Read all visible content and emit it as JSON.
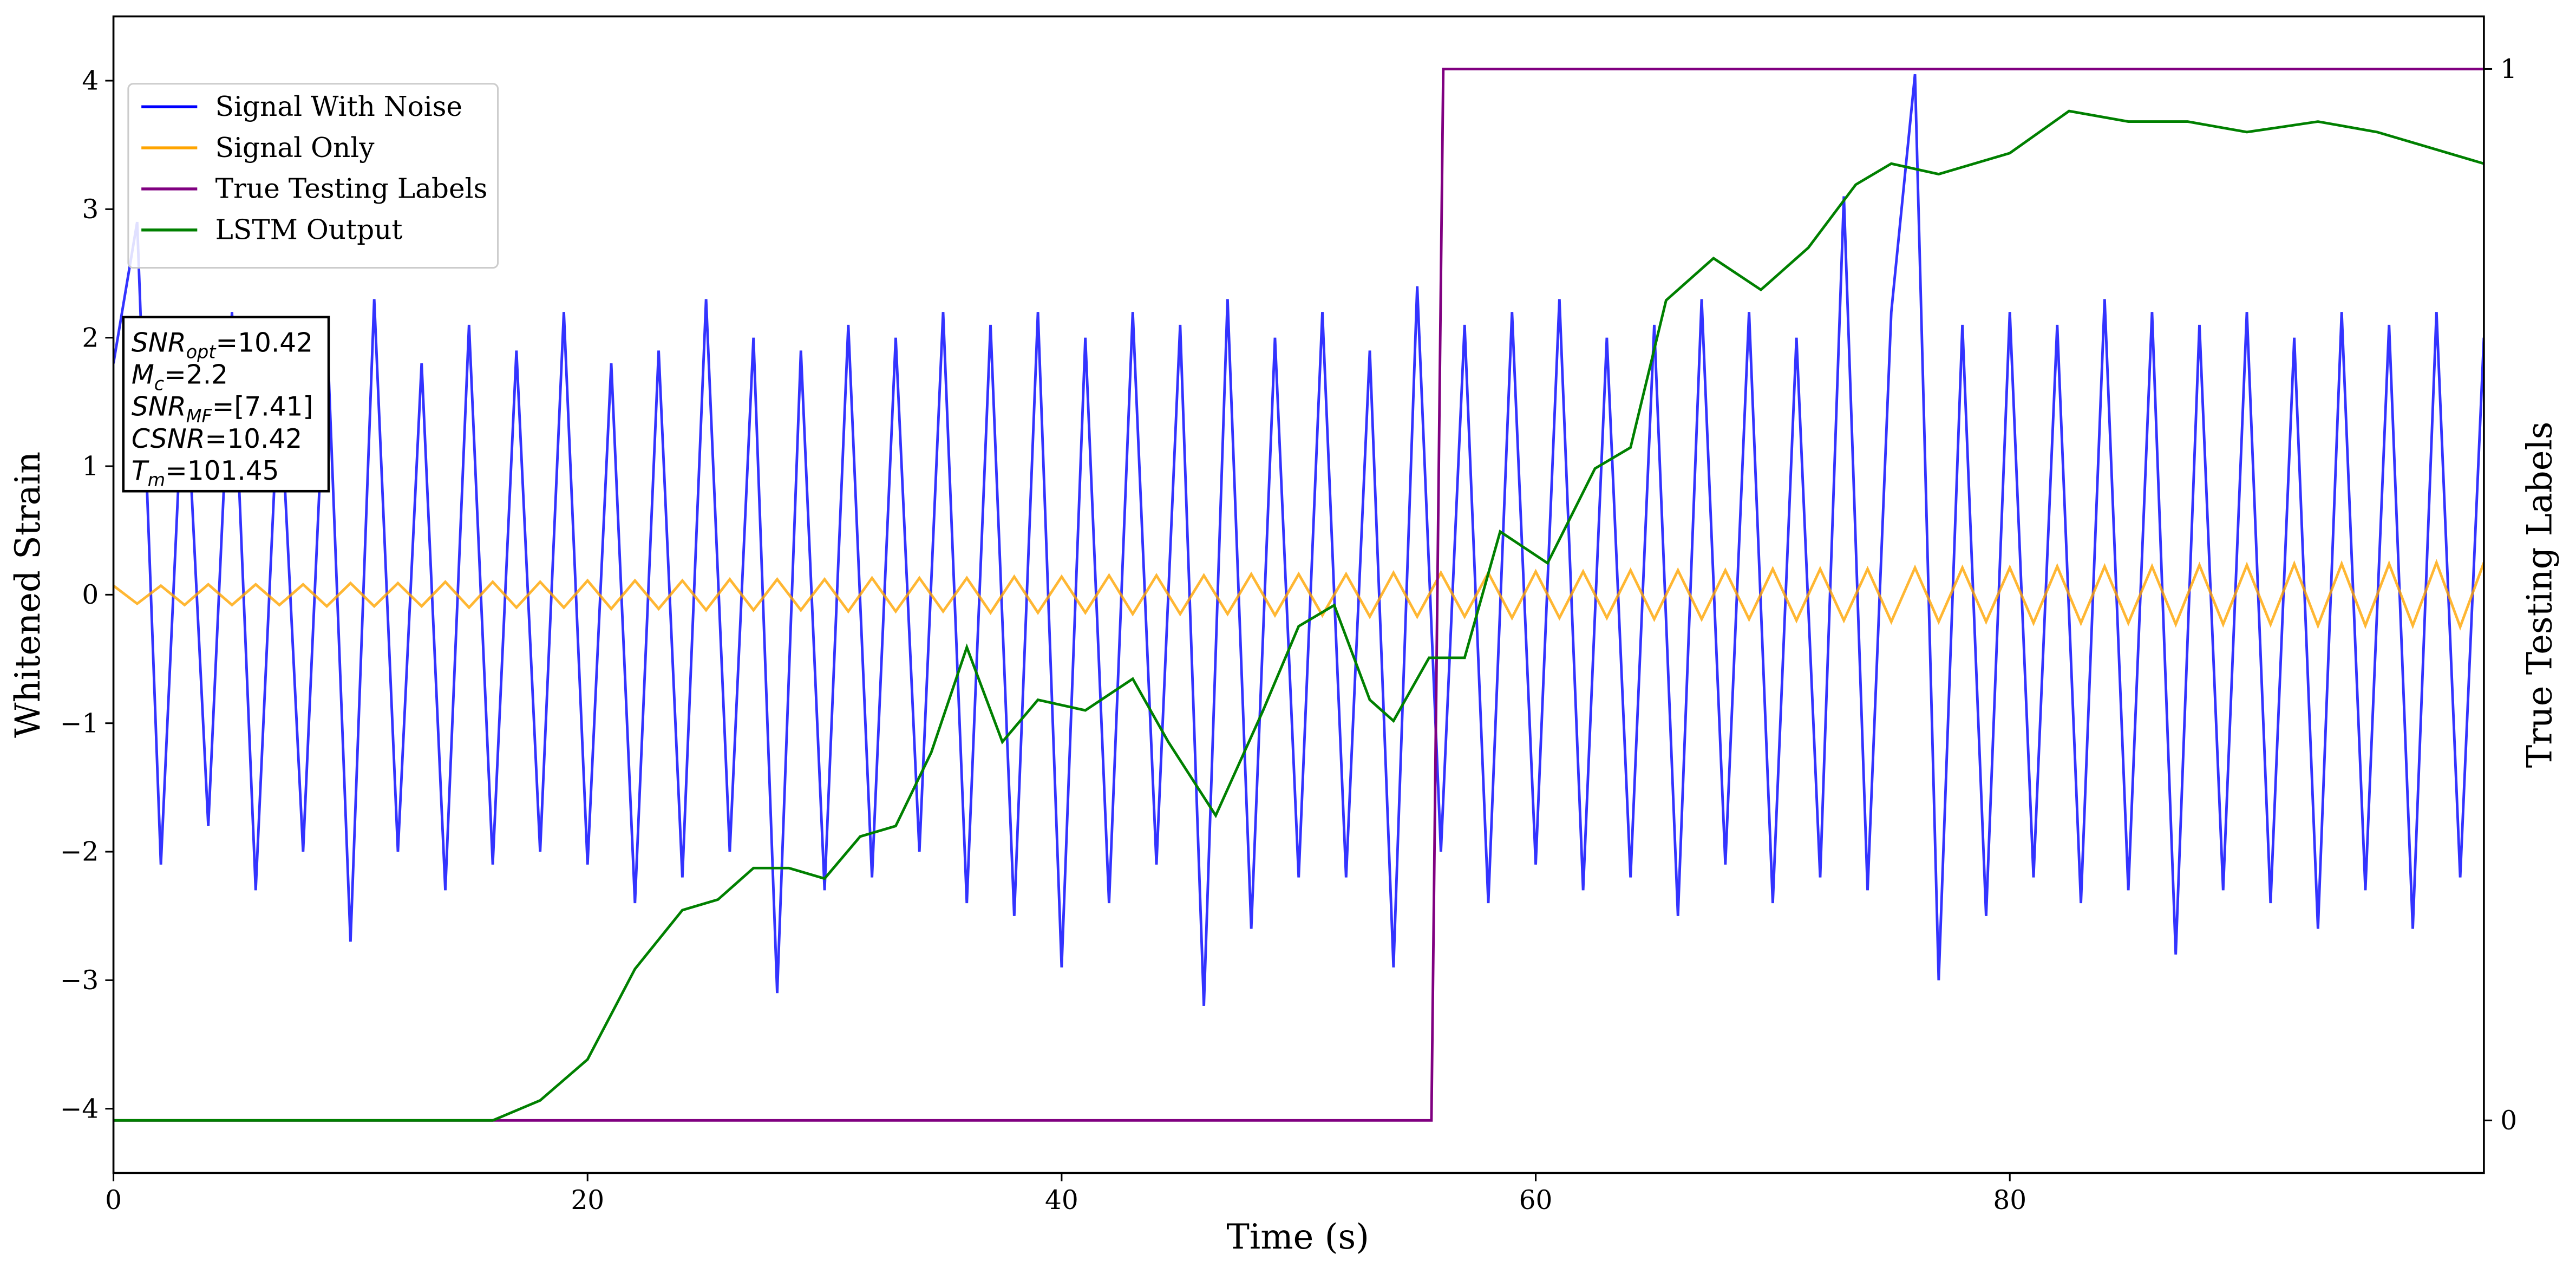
{
  "chart_data": {
    "type": "line",
    "xlabel": "Time (s)",
    "ylabel": "Whitened Strain",
    "y2label": "True Testing Labels",
    "xlim": [
      0,
      100
    ],
    "ylim": [
      -4.5,
      4.5
    ],
    "y2lim": [
      -0.05,
      1.05
    ],
    "xticks": [
      0,
      20,
      40,
      60,
      80
    ],
    "yticks": [
      {
        "value": -4,
        "label": "−4"
      },
      {
        "value": -3,
        "label": "−3"
      },
      {
        "value": -2,
        "label": "−2"
      },
      {
        "value": -1,
        "label": "−1"
      },
      0,
      1,
      2,
      3,
      4
    ],
    "y2ticks": [
      0,
      1
    ],
    "legend": "upper left",
    "x": [
      0,
      1,
      2,
      3,
      4,
      5,
      6,
      7,
      8,
      9,
      10,
      11,
      12,
      13,
      14,
      15,
      16,
      17,
      18,
      19,
      20,
      21,
      22,
      23,
      24,
      25,
      26,
      27,
      28,
      29,
      30,
      31,
      32,
      33,
      34,
      35,
      36,
      37,
      38,
      39,
      40,
      41,
      42,
      43,
      44,
      45,
      46,
      47,
      48,
      49,
      50,
      51,
      52,
      53,
      54,
      55,
      56,
      57,
      58,
      59,
      60,
      61,
      62,
      63,
      64,
      65,
      66,
      67,
      68,
      69,
      70,
      71,
      72,
      73,
      74,
      75,
      76,
      77,
      78,
      79,
      80,
      81,
      82,
      83,
      84,
      85,
      86,
      87,
      88,
      89,
      90,
      91,
      92,
      93,
      94,
      95,
      96,
      97,
      98,
      99,
      100
    ],
    "series": [
      {
        "name": "Signal With Noise",
        "color": "blue",
        "values": [
          1.8,
          2.9,
          -2.1,
          1.9,
          -1.8,
          2.2,
          -2.3,
          1.7,
          -2.0,
          2.1,
          -2.7,
          2.3,
          -2.0,
          1.8,
          -2.3,
          2.1,
          -2.1,
          1.9,
          -2.0,
          2.2,
          -2.1,
          1.8,
          -2.4,
          1.9,
          -2.2,
          2.3,
          -2.0,
          2.0,
          -3.1,
          1.9,
          -2.3,
          2.1,
          -2.2,
          2.0,
          -2.0,
          2.2,
          -2.4,
          2.1,
          -2.5,
          2.2,
          -2.9,
          2.0,
          -2.4,
          2.2,
          -2.1,
          2.1,
          -3.2,
          2.3,
          -2.6,
          2.0,
          -2.2,
          2.2,
          -2.2,
          1.9,
          -2.9,
          2.4,
          -2.0,
          2.1,
          -2.4,
          2.2,
          -2.1,
          2.3,
          -2.3,
          2.0,
          -2.2,
          2.1,
          -2.5,
          2.3,
          -2.1,
          2.2,
          -2.4,
          2.0,
          -2.2,
          3.1,
          -2.3,
          2.2,
          4.05,
          -3.0,
          2.1,
          -2.5,
          2.2,
          -2.2,
          2.1,
          -2.4,
          2.3,
          -2.3,
          2.2,
          -2.8,
          2.1,
          -2.3,
          2.2,
          -2.4,
          2.0,
          -2.6,
          2.2,
          -2.3,
          2.1,
          -2.6,
          2.2,
          -2.2,
          2.0
        ]
      },
      {
        "name": "Signal Only",
        "color": "orange",
        "values": [
          0.07,
          -0.07,
          0.07,
          -0.08,
          0.08,
          -0.08,
          0.08,
          -0.08,
          0.08,
          -0.09,
          0.09,
          -0.09,
          0.09,
          -0.09,
          0.1,
          -0.1,
          0.1,
          -0.1,
          0.1,
          -0.1,
          0.11,
          -0.11,
          0.11,
          -0.11,
          0.11,
          -0.12,
          0.12,
          -0.12,
          0.12,
          -0.12,
          0.12,
          -0.13,
          0.13,
          -0.13,
          0.13,
          -0.13,
          0.13,
          -0.14,
          0.14,
          -0.14,
          0.14,
          -0.14,
          0.15,
          -0.15,
          0.15,
          -0.15,
          0.15,
          -0.15,
          0.16,
          -0.16,
          0.16,
          -0.16,
          0.16,
          -0.17,
          0.17,
          -0.17,
          0.17,
          -0.17,
          0.17,
          -0.18,
          0.18,
          -0.18,
          0.18,
          -0.18,
          0.19,
          -0.19,
          0.19,
          -0.19,
          0.19,
          -0.19,
          0.2,
          -0.2,
          0.2,
          -0.2,
          0.2,
          -0.21,
          0.21,
          -0.21,
          0.21,
          -0.21,
          0.21,
          -0.22,
          0.22,
          -0.22,
          0.22,
          -0.22,
          0.22,
          -0.23,
          0.23,
          -0.23,
          0.23,
          -0.23,
          0.24,
          -0.24,
          0.24,
          -0.24,
          0.24,
          -0.24,
          0.25,
          -0.25,
          0.25
        ]
      },
      {
        "name": "True Testing Labels",
        "color": "purple",
        "axis": "y2",
        "x": [
          0,
          55.6,
          56.1,
          100
        ],
        "values": [
          0,
          0,
          1,
          1
        ]
      },
      {
        "name": "LSTM Output",
        "color": "green",
        "axis": "y2",
        "x": [
          0,
          16,
          18,
          20,
          22,
          24,
          25.5,
          27,
          28.5,
          30,
          31.5,
          33,
          34.5,
          36,
          37.5,
          39,
          41,
          43,
          44.5,
          46.5,
          48.5,
          50,
          51.5,
          53,
          54,
          55.5,
          57,
          58.5,
          60.5,
          62.5,
          64,
          65.5,
          67.5,
          69.5,
          71.5,
          73.5,
          75,
          77,
          80,
          82.5,
          85,
          87.5,
          90,
          93,
          95.5,
          100
        ],
        "values": [
          0,
          0,
          0.019,
          0.058,
          0.144,
          0.2,
          0.21,
          0.24,
          0.24,
          0.23,
          0.27,
          0.28,
          0.35,
          0.45,
          0.36,
          0.4,
          0.39,
          0.42,
          0.36,
          0.29,
          0.39,
          0.47,
          0.49,
          0.4,
          0.38,
          0.44,
          0.44,
          0.56,
          0.53,
          0.62,
          0.64,
          0.78,
          0.82,
          0.79,
          0.83,
          0.89,
          0.91,
          0.9,
          0.92,
          0.96,
          0.95,
          0.95,
          0.94,
          0.95,
          0.94,
          0.91
        ]
      }
    ],
    "annotations": [
      {
        "name": "SNR",
        "sub": "opt",
        "value": "=10.42"
      },
      {
        "name": "M",
        "sub": "c",
        "value": "=2.2"
      },
      {
        "name": "SNR",
        "sub": "MF",
        "value": "=[7.41]"
      },
      {
        "name": "CSNR",
        "value": "=10.42"
      },
      {
        "name": "T",
        "sub": "m",
        "value": "=101.45"
      }
    ]
  }
}
